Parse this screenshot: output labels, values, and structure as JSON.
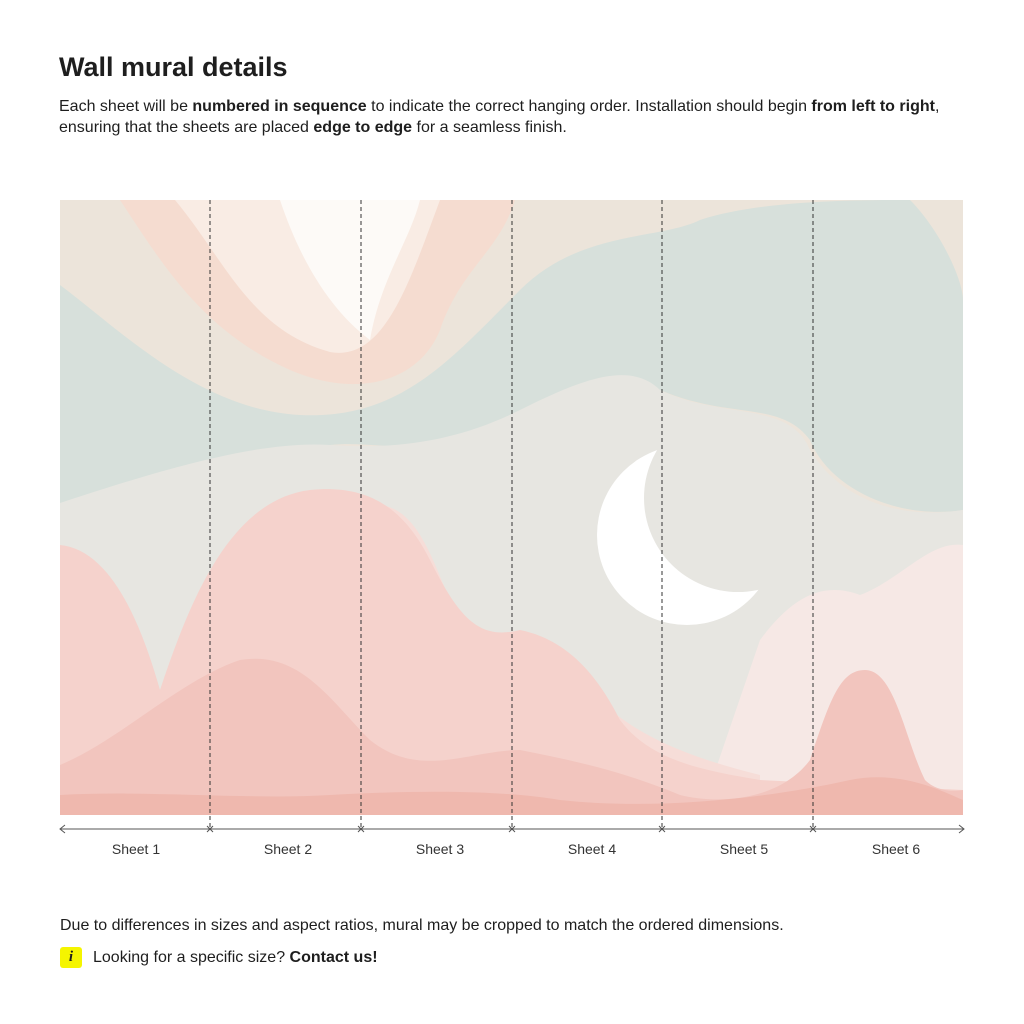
{
  "header": {
    "title": "Wall mural details",
    "description": [
      {
        "text": "Each sheet will be ",
        "bold": false
      },
      {
        "text": "numbered in sequence",
        "bold": true
      },
      {
        "text": " to indicate the correct hanging order. Installation should begin ",
        "bold": false
      },
      {
        "text": "from left to right",
        "bold": true
      },
      {
        "text": ", ensuring that the sheets are placed ",
        "bold": false
      },
      {
        "text": "edge to edge",
        "bold": true
      },
      {
        "text": " for a seamless finish.",
        "bold": false
      }
    ]
  },
  "sheets": [
    "Sheet 1",
    "Sheet 2",
    "Sheet 3",
    "Sheet 4",
    "Sheet 5",
    "Sheet 6"
  ],
  "footer": {
    "note": "Due to differences in sizes and aspect ratios, mural may be cropped to match the ordered dimensions.",
    "info_icon": "i",
    "info_text": "Looking for a specific size? ",
    "info_link": "Contact us!"
  }
}
